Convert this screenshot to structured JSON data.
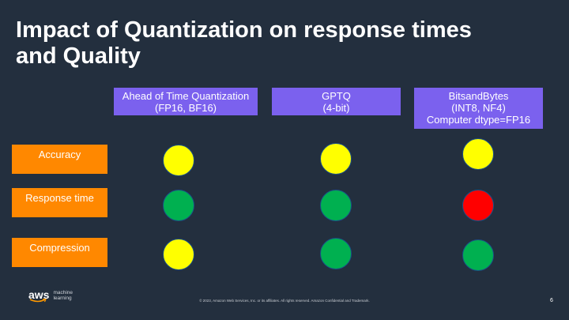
{
  "title": {
    "line1": "Impact of Quantization on response times",
    "line2": "and Quality"
  },
  "columns": [
    {
      "lines": [
        "Ahead of Time Quantization",
        "(FP16, BF16)"
      ]
    },
    {
      "lines": [
        "GPTQ",
        "(4-bit)"
      ]
    },
    {
      "lines": [
        "BitsandBytes",
        "(INT8, NF4)",
        "Computer dtype=FP16"
      ]
    }
  ],
  "rows": [
    {
      "label": "Accuracy",
      "ratings": [
        "yellow",
        "yellow",
        "yellow"
      ]
    },
    {
      "label": "Response time",
      "ratings": [
        "green",
        "green",
        "red"
      ]
    },
    {
      "label": "Compression",
      "ratings": [
        "yellow",
        "green",
        "green"
      ]
    }
  ],
  "rating_colors": {
    "yellow": "#ffff00",
    "green": "#00b050",
    "red": "#ff0000"
  },
  "colors": {
    "background": "#232f3e",
    "header_fill": "#7b61ee",
    "row_label_fill": "#ff8800"
  },
  "footer": {
    "logo_word": "aws",
    "logo_line1": "machine",
    "logo_line2": "learning",
    "copyright": "© 2023, Amazon Web Services, Inc. or its affiliates. All rights reserved. Amazon Confidential and Trademark.",
    "page_number": "6"
  }
}
